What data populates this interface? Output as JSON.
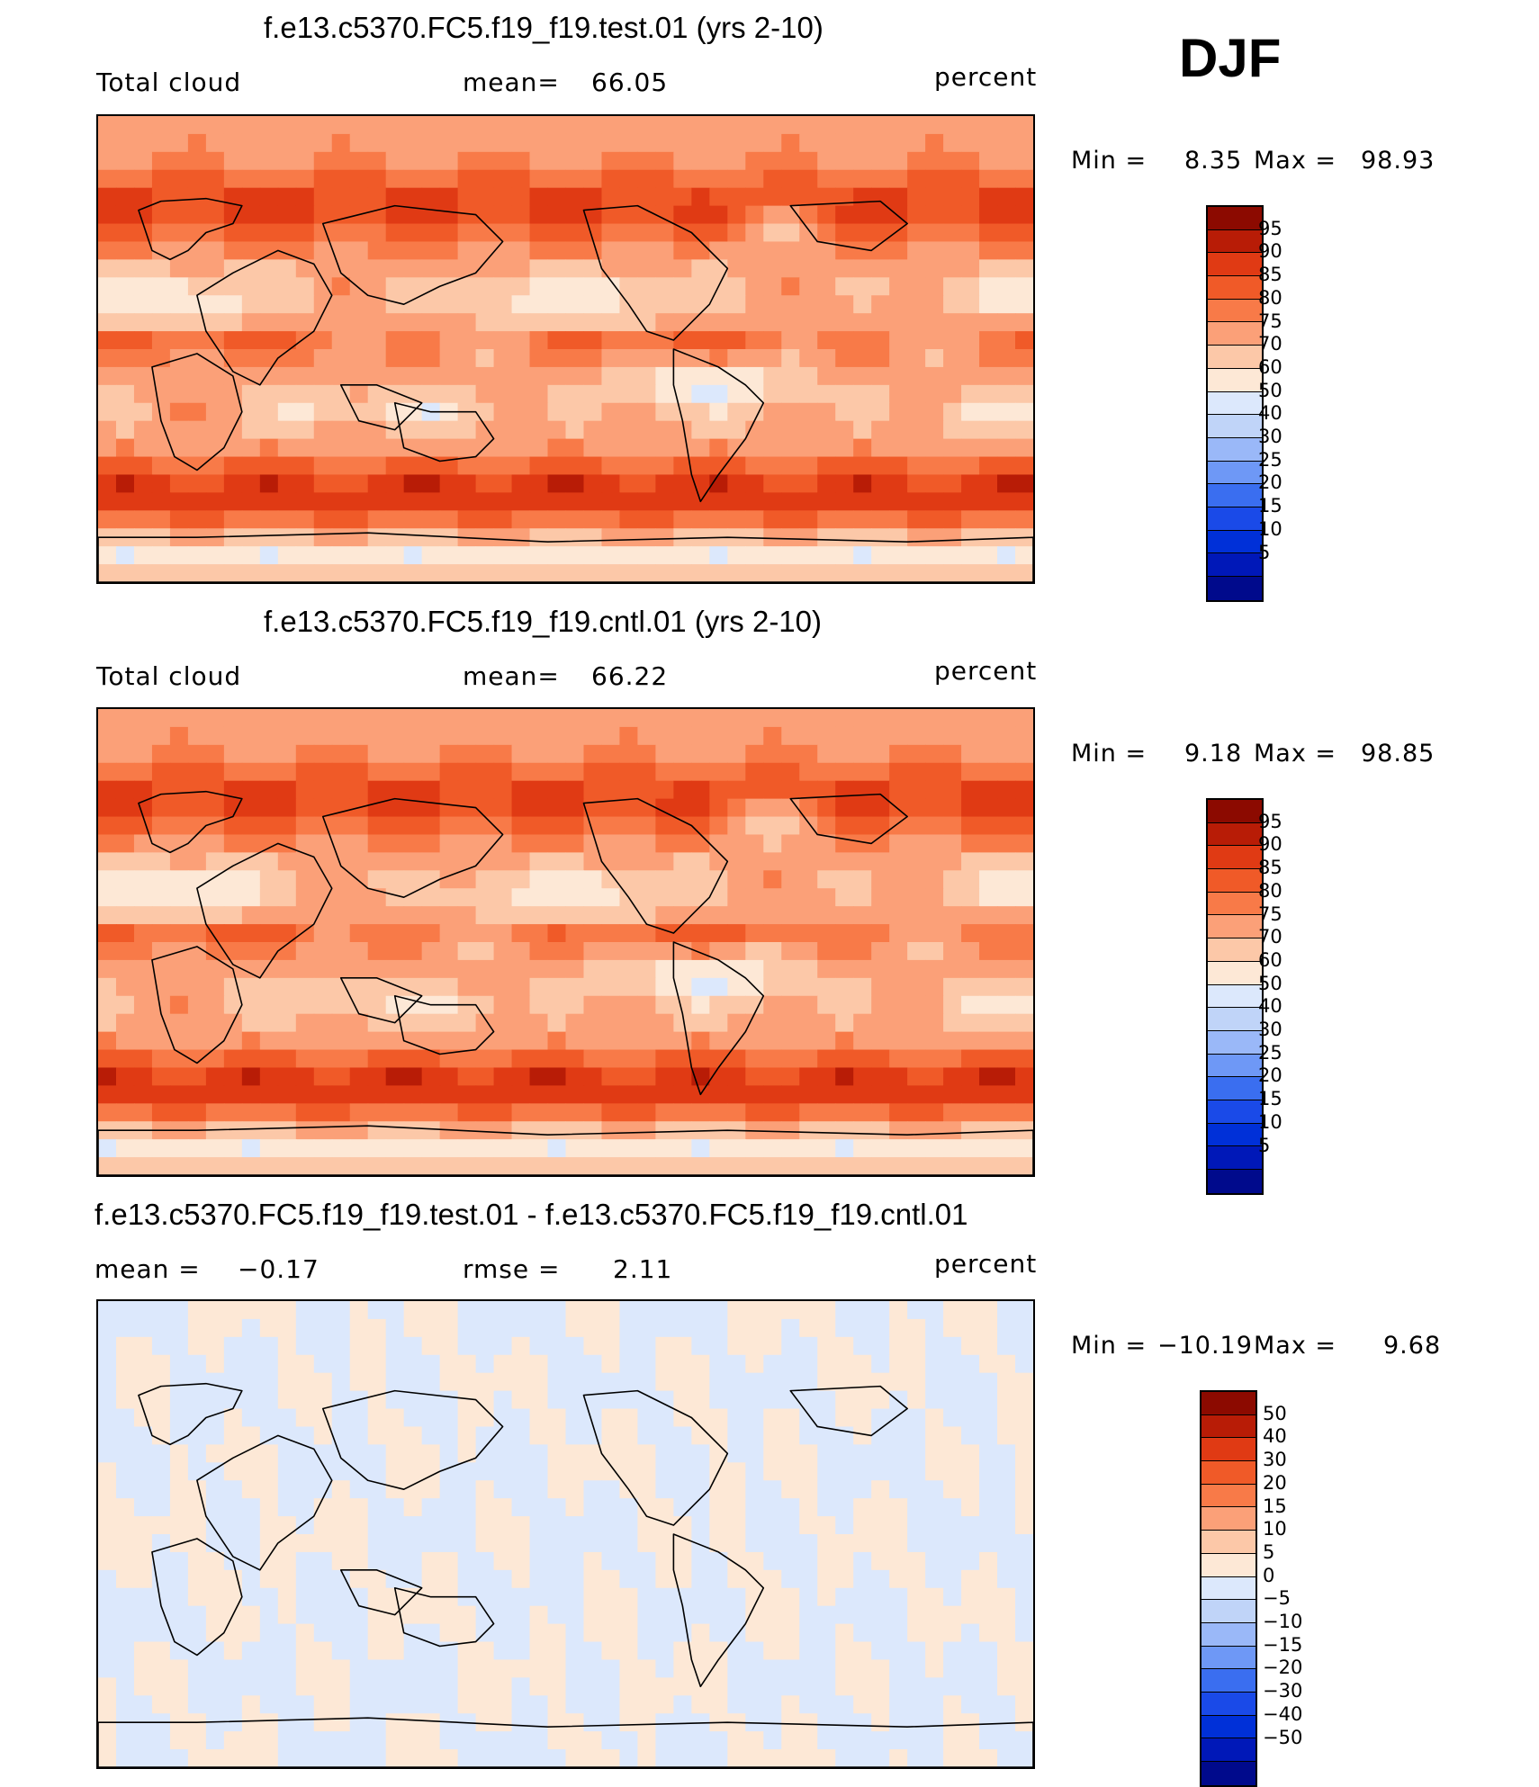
{
  "season": "DJF",
  "colors": {
    "abs_scale": [
      "#000a8c",
      "#0018b8",
      "#0030d8",
      "#1a4ae8",
      "#3a6ef0",
      "#6e98f6",
      "#9ab8f8",
      "#c0d4f8",
      "#dce8fc",
      "#fde8d6",
      "#fcc8a8",
      "#fba078",
      "#f87a48",
      "#f05a28",
      "#e03a14",
      "#b81c06",
      "#8c0a00"
    ],
    "diff_scale": [
      "#000a8c",
      "#0018b8",
      "#0030d8",
      "#1a4ae8",
      "#3a6ef0",
      "#6e98f6",
      "#9ab8f8",
      "#c0d4f8",
      "#dce8fc",
      "#fde8d6",
      "#fcc8a8",
      "#fba078",
      "#f87a48",
      "#f05a28",
      "#e03a14",
      "#b81c06",
      "#8c0a00"
    ]
  },
  "panels": [
    {
      "title": "f.e13.c5370.FC5.f19_f19.test.01 (yrs 2-10)",
      "left_label": "Total cloud",
      "center_label": "mean=",
      "center_value": "66.05",
      "units": "percent",
      "min_label": "Min =",
      "min_value": "8.35",
      "max_label": "Max =",
      "max_value": "98.93",
      "colorbar_labels": [
        "95",
        "90",
        "85",
        "80",
        "75",
        "70",
        "60",
        "50",
        "40",
        "30",
        "25",
        "20",
        "15",
        "10",
        "5"
      ],
      "field": "abs"
    },
    {
      "title": "f.e13.c5370.FC5.f19_f19.cntl.01 (yrs 2-10)",
      "left_label": "Total cloud",
      "center_label": "mean=",
      "center_value": "66.22",
      "units": "percent",
      "min_label": "Min =",
      "min_value": "9.18",
      "max_label": "Max =",
      "max_value": "98.85",
      "colorbar_labels": [
        "95",
        "90",
        "85",
        "80",
        "75",
        "70",
        "60",
        "50",
        "40",
        "30",
        "25",
        "20",
        "15",
        "10",
        "5"
      ],
      "field": "abs"
    },
    {
      "title": "f.e13.c5370.FC5.f19_f19.test.01 - f.e13.c5370.FC5.f19_f19.cntl.01",
      "left_label": "mean =",
      "left_value": "−0.17",
      "center_label": "rmse =",
      "center_value": "2.11",
      "units": "percent",
      "min_label": "Min =",
      "min_value": "−10.19",
      "max_label": "Max =",
      "max_value": "9.68",
      "colorbar_labels": [
        "50",
        "40",
        "30",
        "20",
        "15",
        "10",
        "5",
        "0",
        "−5",
        "−10",
        "−15",
        "−20",
        "−30",
        "−40",
        "−50"
      ],
      "field": "diff"
    }
  ]
}
